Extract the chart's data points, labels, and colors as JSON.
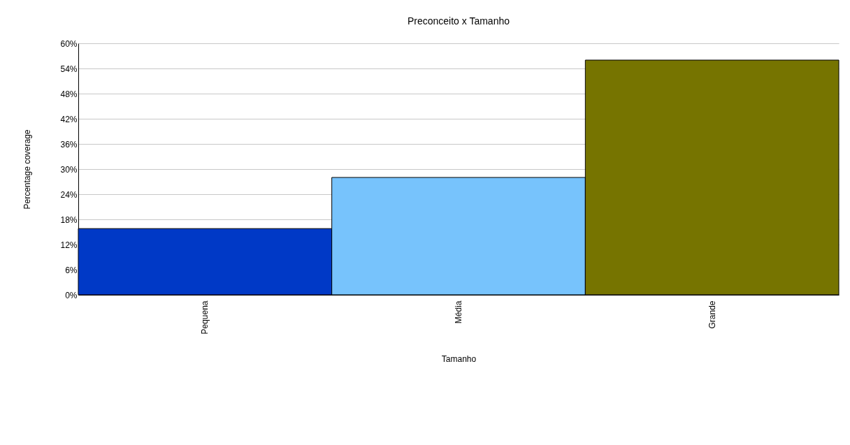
{
  "chart_data": {
    "type": "bar",
    "title": "Preconceito x Tamanho",
    "xlabel": "Tamanho",
    "ylabel": "Percentage coverage",
    "categories": [
      "Pequena",
      "Média",
      "Grande"
    ],
    "values": [
      15.8,
      28.0,
      56.0
    ],
    "colors": [
      "#0039c6",
      "#77c3fc",
      "#767400"
    ],
    "ylim": [
      0,
      60
    ],
    "yticks": [
      {
        "value": 0,
        "label": "0%"
      },
      {
        "value": 6,
        "label": "6%"
      },
      {
        "value": 12,
        "label": "12%"
      },
      {
        "value": 18,
        "label": "18%"
      },
      {
        "value": 24,
        "label": "24%"
      },
      {
        "value": 30,
        "label": "30%"
      },
      {
        "value": 36,
        "label": "36%"
      },
      {
        "value": 42,
        "label": "42%"
      },
      {
        "value": 48,
        "label": "48%"
      },
      {
        "value": 54,
        "label": "54%"
      },
      {
        "value": 60,
        "label": "60%"
      }
    ],
    "grid": "y"
  }
}
